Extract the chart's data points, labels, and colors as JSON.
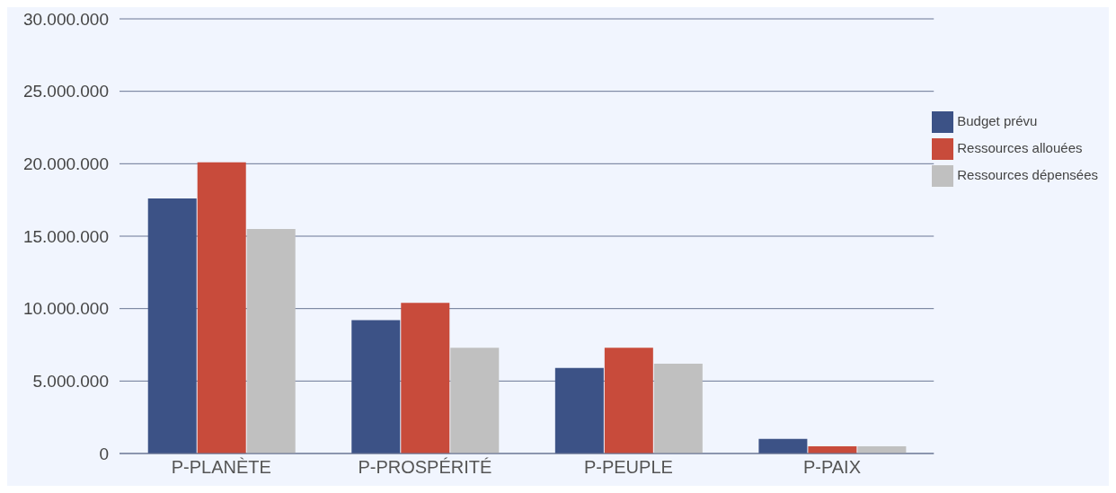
{
  "chart_data": {
    "type": "bar",
    "categories": [
      "P-PLANÈTE",
      "P-PROSPÉRITÉ",
      "P-PEUPLE",
      "P-PAIX"
    ],
    "series": [
      {
        "name": "Budget prévu",
        "color": "#3c5286",
        "values": [
          17600000,
          9200000,
          5900000,
          1000000
        ]
      },
      {
        "name": "Ressources allouées",
        "color": "#c84b3b",
        "values": [
          20100000,
          10400000,
          7300000,
          500000
        ]
      },
      {
        "name": "Ressources dépensées",
        "color": "#c0c0c0",
        "values": [
          15500000,
          7300000,
          6200000,
          500000
        ]
      }
    ],
    "ylim": [
      0,
      30000000
    ],
    "yticks": [
      {
        "value": 0,
        "label": "0"
      },
      {
        "value": 5000000,
        "label": "5.000.000"
      },
      {
        "value": 10000000,
        "label": "10.000.000"
      },
      {
        "value": 15000000,
        "label": "15.000.000"
      },
      {
        "value": 20000000,
        "label": "20.000.000"
      },
      {
        "value": 25000000,
        "label": "25.000.000"
      },
      {
        "value": 30000000,
        "label": "30.000.000"
      }
    ],
    "grid": "y",
    "legend": "top right"
  }
}
